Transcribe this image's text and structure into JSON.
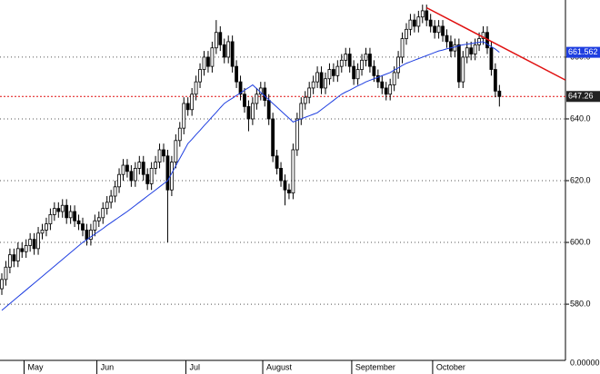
{
  "chart_data": {
    "type": "candlestick",
    "close": [
      588,
      592,
      596,
      594,
      598,
      597,
      599,
      601,
      598,
      603,
      604,
      606,
      609,
      611,
      610,
      612,
      608,
      610,
      607,
      606,
      604,
      601,
      604,
      607,
      608,
      611,
      613,
      615,
      618,
      622,
      625,
      623,
      620,
      624,
      626,
      622,
      619,
      624,
      626,
      630,
      628,
      617,
      626,
      633,
      637,
      645,
      643,
      648,
      652,
      656,
      660,
      657,
      663,
      668,
      664,
      660,
      665,
      657,
      652,
      648,
      644,
      640,
      645,
      648,
      650,
      646,
      640,
      628,
      624,
      620,
      617,
      616,
      630,
      640,
      645,
      647,
      650,
      652,
      655,
      650,
      653,
      656,
      654,
      657,
      659,
      661,
      657,
      653,
      656,
      659,
      661,
      657,
      654,
      652,
      650,
      648,
      651,
      655,
      660,
      666,
      669,
      672,
      670,
      673,
      675,
      672,
      670,
      668,
      670,
      667,
      665,
      662,
      664,
      652,
      660,
      663,
      661,
      664,
      666,
      668,
      663,
      656,
      649,
      647.26
    ],
    "open": [
      585,
      588,
      592,
      596,
      594,
      598,
      597,
      599,
      601,
      598,
      603,
      604,
      606,
      609,
      611,
      610,
      612,
      608,
      610,
      607,
      606,
      604,
      601,
      604,
      607,
      608,
      611,
      613,
      615,
      618,
      622,
      625,
      623,
      620,
      624,
      626,
      622,
      619,
      624,
      626,
      630,
      628,
      617,
      626,
      633,
      637,
      645,
      643,
      648,
      652,
      656,
      660,
      657,
      663,
      668,
      664,
      660,
      665,
      657,
      652,
      648,
      644,
      640,
      645,
      648,
      650,
      646,
      640,
      628,
      624,
      620,
      617,
      616,
      630,
      640,
      645,
      647,
      650,
      652,
      655,
      650,
      653,
      656,
      654,
      657,
      659,
      661,
      657,
      653,
      656,
      659,
      661,
      657,
      654,
      652,
      650,
      648,
      651,
      655,
      660,
      666,
      669,
      672,
      670,
      673,
      675,
      672,
      670,
      668,
      670,
      667,
      665,
      662,
      664,
      652,
      660,
      663,
      661,
      664,
      666,
      668,
      663,
      656,
      649
    ],
    "high": [
      590,
      594,
      598,
      598,
      600,
      600,
      601,
      603,
      603,
      605,
      606,
      608,
      611,
      613,
      613,
      614,
      614,
      612,
      612,
      609,
      608,
      606,
      606,
      609,
      610,
      613,
      615,
      617,
      620,
      624,
      627,
      627,
      625,
      626,
      628,
      628,
      624,
      626,
      628,
      632,
      632,
      630,
      628,
      635,
      639,
      647,
      647,
      650,
      654,
      658,
      662,
      662,
      665,
      672,
      670,
      666,
      667,
      667,
      659,
      654,
      650,
      646,
      647,
      650,
      652,
      652,
      648,
      642,
      630,
      626,
      622,
      619,
      632,
      642,
      647,
      649,
      652,
      654,
      657,
      657,
      655,
      658,
      658,
      659,
      661,
      663,
      663,
      659,
      658,
      661,
      663,
      663,
      659,
      656,
      654,
      652,
      653,
      657,
      662,
      668,
      671,
      674,
      674,
      675,
      677,
      677,
      674,
      672,
      672,
      672,
      669,
      667,
      666,
      666,
      662,
      665,
      665,
      666,
      668,
      670,
      670,
      665,
      658,
      651
    ],
    "low": [
      583,
      586,
      590,
      592,
      592,
      595,
      595,
      597,
      596,
      596,
      601,
      602,
      604,
      607,
      608,
      608,
      606,
      606,
      605,
      604,
      602,
      599,
      599,
      602,
      605,
      606,
      609,
      611,
      613,
      616,
      620,
      621,
      618,
      618,
      622,
      620,
      617,
      617,
      622,
      624,
      626,
      600,
      615,
      624,
      631,
      635,
      641,
      641,
      646,
      650,
      654,
      655,
      655,
      661,
      662,
      658,
      658,
      655,
      650,
      646,
      642,
      636,
      638,
      643,
      646,
      644,
      638,
      626,
      622,
      618,
      612,
      614,
      614,
      628,
      638,
      643,
      645,
      648,
      650,
      648,
      648,
      651,
      652,
      652,
      655,
      657,
      655,
      651,
      651,
      654,
      657,
      655,
      652,
      650,
      648,
      646,
      646,
      649,
      653,
      658,
      664,
      667,
      668,
      668,
      671,
      670,
      668,
      666,
      666,
      665,
      663,
      660,
      660,
      650,
      650,
      658,
      659,
      659,
      662,
      664,
      661,
      654,
      647,
      644
    ],
    "ma": [
      578,
      579.1,
      580.2,
      581.3,
      582.4,
      583.5,
      584.6,
      585.7,
      586.8,
      587.9,
      589,
      590.1,
      591.2,
      592.3,
      593.4,
      594.5,
      595.6,
      596.7,
      597.8,
      598.9,
      600,
      600.9,
      601.8,
      602.7,
      603.6,
      604.5,
      605.5,
      606.4,
      607.3,
      608.2,
      609.1,
      610,
      611,
      612,
      613,
      614,
      615,
      616,
      617,
      618,
      619,
      620,
      622.4,
      624.8,
      627.2,
      629.6,
      632,
      633.4,
      634.9,
      636.3,
      637.8,
      639.2,
      640.7,
      642.1,
      643.6,
      645,
      645.9,
      646.7,
      647.6,
      648.4,
      649.3,
      650.1,
      651,
      649.8,
      648.6,
      647.4,
      646.2,
      645,
      643.8,
      642.6,
      641.4,
      640.2,
      639,
      639.5,
      640,
      640.5,
      641,
      641.5,
      642,
      643,
      644,
      645,
      646,
      647,
      648,
      648.7,
      649.3,
      650,
      650.7,
      651.3,
      652,
      652.5,
      653,
      653.5,
      654,
      654.5,
      655,
      655.8,
      656.5,
      657.3,
      658,
      658.5,
      659,
      659.5,
      660,
      660.5,
      661,
      661.5,
      662,
      662.3,
      662.7,
      663,
      663.3,
      663.7,
      664,
      664.2,
      664.4,
      664.6,
      664.8,
      665,
      664.2,
      663.4,
      662.6,
      661.562
    ],
    "ma_color": "#1e3ee0",
    "up_color": "#ffffff",
    "down_color": "#000000",
    "trendline": {
      "x": [
        105,
        139.3
      ],
      "values": [
        676,
        652.6
      ],
      "color": "#e01010"
    },
    "last_line_color": "#e01010",
    "xlim": [
      -0.45,
      139.33
    ],
    "xticks": [
      {
        "value": 5.5,
        "label": "May"
      },
      {
        "value": 23.5,
        "label": "Jun"
      },
      {
        "value": 45.5,
        "label": "Jul"
      },
      {
        "value": 64.5,
        "label": "August"
      },
      {
        "value": 86.5,
        "label": "September"
      },
      {
        "value": 106.5,
        "label": "October"
      }
    ],
    "ylim": [
      561.8,
      678.5
    ],
    "yticks": [
      {
        "value": 580,
        "label": "580.0"
      },
      {
        "value": 600,
        "label": "600.0"
      },
      {
        "value": 620,
        "label": "620.0"
      },
      {
        "value": 640,
        "label": "640.0"
      },
      {
        "value": 660,
        "label": "660.0"
      }
    ],
    "y_axis_footer": "0.00000",
    "grid": true
  }
}
